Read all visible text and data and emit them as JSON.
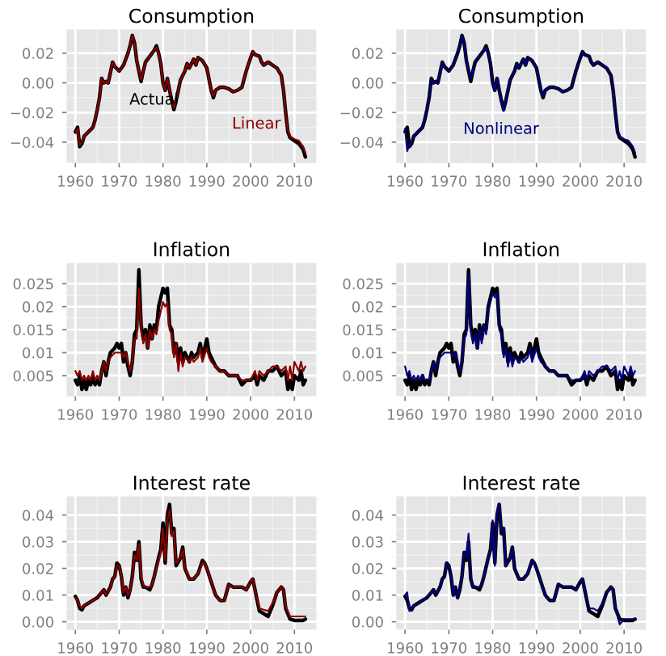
{
  "chart_data": [
    {
      "type": "line",
      "title": "Consumption",
      "xlim": [
        1958,
        2015
      ],
      "xticks": [
        1960,
        1970,
        1980,
        1990,
        2000,
        2010
      ],
      "ylim": [
        -0.054,
        0.036
      ],
      "yticks": [
        {
          "value": -0.04,
          "label": "−0.04"
        },
        {
          "value": -0.02,
          "label": "−0.02"
        },
        {
          "value": 0,
          "label": "0.00"
        },
        {
          "value": 0.02,
          "label": "0.02"
        }
      ],
      "grid": true,
      "x": [
        1960,
        1960.5,
        1961,
        1961.5,
        1962,
        1963,
        1964,
        1964.5,
        1965,
        1965.5,
        1966,
        1966.5,
        1967,
        1967.5,
        1968,
        1968.5,
        1969,
        1970,
        1970.5,
        1971,
        1972,
        1972.5,
        1973,
        1973.5,
        1974,
        1975,
        1975.5,
        1976,
        1977,
        1978,
        1978.5,
        1979,
        1979.5,
        1980,
        1980.5,
        1981,
        1981.5,
        1982,
        1982.5,
        1983,
        1983.5,
        1984,
        1985,
        1985.5,
        1986,
        1987,
        1987.5,
        1988,
        1989,
        1990,
        1991,
        1991.5,
        1992,
        1993,
        1994,
        1995,
        1996,
        1997,
        1998,
        1999,
        2000,
        2000.5,
        2001,
        2002,
        2002.5,
        2003,
        2004,
        2005,
        2006,
        2007,
        2007.5,
        2008,
        2008.5,
        2009,
        2010,
        2011,
        2012,
        2012.5
      ],
      "series": [
        {
          "name": "Actual",
          "color": "#000000",
          "values": [
            -0.033,
            -0.03,
            -0.043,
            -0.041,
            -0.036,
            -0.033,
            -0.03,
            -0.025,
            -0.018,
            -0.01,
            0.003,
            0.0,
            0.001,
            0.0,
            0.007,
            0.014,
            0.011,
            0.008,
            0.01,
            0.012,
            0.02,
            0.025,
            0.032,
            0.027,
            0.015,
            0.001,
            0.008,
            0.014,
            0.018,
            0.022,
            0.025,
            0.02,
            0.013,
            0.0,
            -0.005,
            0.003,
            -0.005,
            -0.012,
            -0.018,
            -0.012,
            -0.005,
            0.002,
            0.008,
            0.013,
            0.01,
            0.016,
            0.012,
            0.017,
            0.015,
            0.01,
            -0.005,
            -0.01,
            -0.005,
            -0.003,
            -0.003,
            -0.004,
            -0.006,
            -0.005,
            -0.003,
            0.008,
            0.017,
            0.021,
            0.019,
            0.018,
            0.014,
            0.012,
            0.014,
            0.012,
            0.01,
            0.005,
            -0.005,
            -0.02,
            -0.033,
            -0.037,
            -0.039,
            -0.041,
            -0.045,
            -0.05
          ]
        },
        {
          "name": "Linear",
          "color": "#8b0000",
          "values": [
            -0.034,
            -0.031,
            -0.042,
            -0.04,
            -0.036,
            -0.033,
            -0.03,
            -0.025,
            -0.018,
            -0.01,
            0.003,
            0.0,
            0.001,
            0.0,
            0.007,
            0.014,
            0.011,
            0.008,
            0.01,
            0.012,
            0.02,
            0.025,
            0.032,
            0.027,
            0.015,
            0.002,
            0.008,
            0.014,
            0.018,
            0.022,
            0.024,
            0.02,
            0.013,
            0.0,
            -0.005,
            0.003,
            -0.005,
            -0.012,
            -0.017,
            -0.012,
            -0.005,
            0.002,
            0.008,
            0.013,
            0.01,
            0.016,
            0.012,
            0.017,
            0.015,
            0.01,
            -0.005,
            -0.009,
            -0.005,
            -0.003,
            -0.003,
            -0.004,
            -0.006,
            -0.005,
            -0.003,
            0.008,
            0.017,
            0.021,
            0.019,
            0.018,
            0.014,
            0.012,
            0.014,
            0.012,
            0.01,
            0.005,
            -0.005,
            -0.02,
            -0.032,
            -0.036,
            -0.038,
            -0.039,
            -0.043,
            -0.047
          ]
        }
      ]
    },
    {
      "type": "line",
      "title": "Consumption",
      "xlim": [
        1958,
        2015
      ],
      "xticks": [
        1960,
        1970,
        1980,
        1990,
        2000,
        2010
      ],
      "ylim": [
        -0.054,
        0.036
      ],
      "yticks": [
        {
          "value": -0.04,
          "label": "−0.04"
        },
        {
          "value": -0.02,
          "label": "−0.02"
        },
        {
          "value": 0,
          "label": "0.00"
        },
        {
          "value": 0.02,
          "label": "0.02"
        }
      ],
      "grid": true,
      "x": [
        1960,
        1960.5,
        1961,
        1961.5,
        1962,
        1963,
        1964,
        1964.5,
        1965,
        1965.5,
        1966,
        1966.5,
        1967,
        1967.5,
        1968,
        1968.5,
        1969,
        1970,
        1970.5,
        1971,
        1972,
        1972.5,
        1973,
        1973.5,
        1974,
        1975,
        1975.5,
        1976,
        1977,
        1978,
        1978.5,
        1979,
        1979.5,
        1980,
        1980.5,
        1981,
        1981.5,
        1982,
        1982.5,
        1983,
        1983.5,
        1984,
        1985,
        1985.5,
        1986,
        1987,
        1987.5,
        1988,
        1989,
        1990,
        1991,
        1991.5,
        1992,
        1993,
        1994,
        1995,
        1996,
        1997,
        1998,
        1999,
        2000,
        2000.5,
        2001,
        2002,
        2002.5,
        2003,
        2004,
        2005,
        2006,
        2007,
        2007.5,
        2008,
        2008.5,
        2009,
        2010,
        2011,
        2012,
        2012.5
      ],
      "series": [
        {
          "color": "#000000",
          "values": [
            -0.033,
            -0.03,
            -0.043,
            -0.041,
            -0.036,
            -0.033,
            -0.03,
            -0.025,
            -0.018,
            -0.01,
            0.003,
            0.0,
            0.001,
            0.0,
            0.007,
            0.014,
            0.011,
            0.008,
            0.01,
            0.012,
            0.02,
            0.025,
            0.032,
            0.027,
            0.015,
            0.001,
            0.008,
            0.014,
            0.018,
            0.022,
            0.025,
            0.02,
            0.013,
            0.0,
            -0.005,
            0.003,
            -0.005,
            -0.012,
            -0.018,
            -0.012,
            -0.005,
            0.002,
            0.008,
            0.013,
            0.01,
            0.016,
            0.012,
            0.017,
            0.015,
            0.01,
            -0.005,
            -0.01,
            -0.005,
            -0.003,
            -0.003,
            -0.004,
            -0.006,
            -0.005,
            -0.003,
            0.008,
            0.017,
            0.021,
            0.019,
            0.018,
            0.014,
            0.012,
            0.014,
            0.012,
            0.01,
            0.005,
            -0.005,
            -0.02,
            -0.033,
            -0.037,
            -0.039,
            -0.041,
            -0.045,
            -0.05
          ]
        },
        {
          "name": "Nonlinear",
          "color": "#000080",
          "values": [
            -0.031,
            -0.046,
            -0.042,
            -0.04,
            -0.036,
            -0.033,
            -0.03,
            -0.025,
            -0.018,
            -0.01,
            0.003,
            0.0,
            0.001,
            0.0,
            0.007,
            0.014,
            0.011,
            0.008,
            0.01,
            0.012,
            0.02,
            0.025,
            0.032,
            0.027,
            0.015,
            0.003,
            0.008,
            0.014,
            0.018,
            0.022,
            0.024,
            0.02,
            0.013,
            0.0,
            -0.005,
            0.003,
            -0.005,
            -0.012,
            -0.019,
            -0.012,
            -0.005,
            0.002,
            0.008,
            0.013,
            0.01,
            0.016,
            0.012,
            0.017,
            0.015,
            0.01,
            -0.005,
            -0.009,
            -0.005,
            -0.003,
            -0.003,
            -0.004,
            -0.006,
            -0.005,
            -0.003,
            0.008,
            0.017,
            0.021,
            0.019,
            0.018,
            0.014,
            0.012,
            0.014,
            0.012,
            0.01,
            0.005,
            -0.005,
            -0.02,
            -0.032,
            -0.036,
            -0.038,
            -0.039,
            -0.043,
            -0.047
          ]
        }
      ]
    },
    {
      "type": "line",
      "title": "Inflation",
      "xlim": [
        1958,
        2015
      ],
      "xticks": [
        1960,
        1970,
        1980,
        1990,
        2000,
        2010
      ],
      "ylim": [
        0.0005,
        0.0295
      ],
      "yticks": [
        0.005,
        0.01,
        0.015,
        0.02,
        0.025
      ],
      "grid": true,
      "x": [
        1960,
        1960.5,
        1961,
        1961.5,
        1962,
        1962.5,
        1963,
        1963.5,
        1964,
        1964.5,
        1965,
        1965.5,
        1966,
        1966.5,
        1967,
        1967.5,
        1968,
        1969,
        1969.5,
        1970,
        1970.5,
        1971,
        1971.5,
        1972,
        1972.5,
        1973,
        1973.5,
        1974,
        1974.5,
        1975,
        1975.5,
        1976,
        1976.5,
        1977,
        1977.5,
        1978,
        1978.5,
        1979,
        1979.5,
        1980,
        1980.5,
        1981,
        1981.5,
        1982,
        1982.5,
        1983,
        1983.5,
        1984,
        1984.5,
        1985,
        1986,
        1986.5,
        1987,
        1988,
        1988.5,
        1989,
        1990,
        1990.5,
        1991,
        1992,
        1993,
        1994,
        1995,
        1996,
        1997,
        1998,
        1999,
        2000,
        2001,
        2001.5,
        2002,
        2003,
        2004,
        2005,
        2006,
        2007,
        2008,
        2008.5,
        2009,
        2009.5,
        2010,
        2011,
        2011.5,
        2012,
        2012.5
      ],
      "series": [
        {
          "color": "#000000",
          "values": [
            0.004,
            0.003,
            0.005,
            0.002,
            0.004,
            0.002,
            0.004,
            0.003,
            0.005,
            0.003,
            0.004,
            0.003,
            0.006,
            0.008,
            0.005,
            0.008,
            0.01,
            0.011,
            0.012,
            0.011,
            0.012,
            0.008,
            0.01,
            0.007,
            0.005,
            0.008,
            0.014,
            0.015,
            0.028,
            0.016,
            0.013,
            0.015,
            0.011,
            0.016,
            0.013,
            0.016,
            0.015,
            0.02,
            0.022,
            0.024,
            0.023,
            0.024,
            0.016,
            0.015,
            0.01,
            0.012,
            0.008,
            0.011,
            0.008,
            0.01,
            0.008,
            0.01,
            0.009,
            0.01,
            0.012,
            0.009,
            0.013,
            0.01,
            0.009,
            0.007,
            0.006,
            0.006,
            0.005,
            0.005,
            0.005,
            0.003,
            0.004,
            0.004,
            0.005,
            0.003,
            0.005,
            0.004,
            0.006,
            0.006,
            0.007,
            0.005,
            0.006,
            0.002,
            0.004,
            0.002,
            0.005,
            0.004,
            0.006,
            0.003,
            0.004
          ]
        },
        {
          "color": "#8b0000",
          "values": [
            0.006,
            0.005,
            0.006,
            0.004,
            0.005,
            0.004,
            0.005,
            0.004,
            0.006,
            0.004,
            0.005,
            0.004,
            0.006,
            0.008,
            0.006,
            0.008,
            0.009,
            0.01,
            0.01,
            0.01,
            0.01,
            0.009,
            0.01,
            0.008,
            0.006,
            0.008,
            0.013,
            0.013,
            0.024,
            0.015,
            0.012,
            0.014,
            0.011,
            0.015,
            0.013,
            0.015,
            0.014,
            0.017,
            0.019,
            0.021,
            0.02,
            0.021,
            0.015,
            0.014,
            0.009,
            0.012,
            0.006,
            0.01,
            0.007,
            0.009,
            0.008,
            0.009,
            0.008,
            0.009,
            0.011,
            0.008,
            0.011,
            0.009,
            0.008,
            0.007,
            0.006,
            0.006,
            0.005,
            0.005,
            0.005,
            0.004,
            0.004,
            0.004,
            0.006,
            0.004,
            0.006,
            0.005,
            0.006,
            0.007,
            0.007,
            0.006,
            0.007,
            0.004,
            0.007,
            0.004,
            0.008,
            0.006,
            0.008,
            0.006,
            0.007
          ]
        }
      ]
    },
    {
      "type": "line",
      "title": "Inflation",
      "xlim": [
        1958,
        2015
      ],
      "xticks": [
        1960,
        1970,
        1980,
        1990,
        2000,
        2010
      ],
      "ylim": [
        0.0005,
        0.0295
      ],
      "yticks": [
        0.005,
        0.01,
        0.015,
        0.02,
        0.025
      ],
      "grid": true,
      "x": [
        1960,
        1960.5,
        1961,
        1961.5,
        1962,
        1962.5,
        1963,
        1963.5,
        1964,
        1964.5,
        1965,
        1965.5,
        1966,
        1966.5,
        1967,
        1967.5,
        1968,
        1969,
        1969.5,
        1970,
        1970.5,
        1971,
        1971.5,
        1972,
        1972.5,
        1973,
        1973.5,
        1974,
        1974.5,
        1975,
        1975.5,
        1976,
        1976.5,
        1977,
        1977.5,
        1978,
        1978.5,
        1979,
        1979.5,
        1980,
        1980.5,
        1981,
        1981.5,
        1982,
        1982.5,
        1983,
        1983.5,
        1984,
        1984.5,
        1985,
        1986,
        1986.5,
        1987,
        1988,
        1988.5,
        1989,
        1990,
        1990.5,
        1991,
        1992,
        1993,
        1994,
        1995,
        1996,
        1997,
        1998,
        1999,
        2000,
        2001,
        2001.5,
        2002,
        2003,
        2004,
        2005,
        2006,
        2007,
        2008,
        2008.5,
        2009,
        2009.5,
        2010,
        2011,
        2011.5,
        2012,
        2012.5
      ],
      "series": [
        {
          "color": "#000000",
          "values": [
            0.004,
            0.003,
            0.005,
            0.002,
            0.004,
            0.002,
            0.004,
            0.003,
            0.005,
            0.003,
            0.004,
            0.003,
            0.006,
            0.008,
            0.005,
            0.008,
            0.01,
            0.011,
            0.012,
            0.011,
            0.012,
            0.008,
            0.01,
            0.007,
            0.005,
            0.008,
            0.014,
            0.015,
            0.028,
            0.016,
            0.013,
            0.015,
            0.011,
            0.016,
            0.013,
            0.016,
            0.015,
            0.02,
            0.022,
            0.024,
            0.023,
            0.024,
            0.016,
            0.015,
            0.01,
            0.012,
            0.008,
            0.011,
            0.008,
            0.01,
            0.008,
            0.01,
            0.009,
            0.01,
            0.012,
            0.009,
            0.013,
            0.01,
            0.009,
            0.007,
            0.006,
            0.006,
            0.005,
            0.005,
            0.005,
            0.003,
            0.004,
            0.004,
            0.005,
            0.003,
            0.005,
            0.004,
            0.006,
            0.006,
            0.007,
            0.005,
            0.006,
            0.002,
            0.004,
            0.002,
            0.005,
            0.004,
            0.006,
            0.003,
            0.004
          ]
        },
        {
          "color": "#000080",
          "values": [
            0.007,
            0.005,
            0.006,
            0.004,
            0.005,
            0.004,
            0.005,
            0.004,
            0.005,
            0.004,
            0.004,
            0.004,
            0.006,
            0.008,
            0.006,
            0.008,
            0.009,
            0.01,
            0.01,
            0.01,
            0.01,
            0.009,
            0.01,
            0.008,
            0.006,
            0.008,
            0.013,
            0.014,
            0.027,
            0.015,
            0.012,
            0.014,
            0.011,
            0.015,
            0.012,
            0.016,
            0.014,
            0.019,
            0.021,
            0.023,
            0.022,
            0.023,
            0.015,
            0.014,
            0.009,
            0.011,
            0.007,
            0.01,
            0.007,
            0.009,
            0.008,
            0.009,
            0.008,
            0.009,
            0.011,
            0.008,
            0.011,
            0.009,
            0.008,
            0.007,
            0.006,
            0.006,
            0.005,
            0.005,
            0.005,
            0.004,
            0.004,
            0.004,
            0.006,
            0.004,
            0.006,
            0.005,
            0.006,
            0.007,
            0.007,
            0.006,
            0.007,
            0.004,
            0.006,
            0.004,
            0.007,
            0.005,
            0.007,
            0.005,
            0.006
          ]
        }
      ]
    },
    {
      "type": "line",
      "title": "Interest rate",
      "xlim": [
        1958,
        2015
      ],
      "xticks": [
        1960,
        1970,
        1980,
        1990,
        2000,
        2010
      ],
      "ylim": [
        -0.003,
        0.047
      ],
      "yticks": [
        {
          "value": 0,
          "label": "0.00"
        },
        {
          "value": 0.01,
          "label": "0.01"
        },
        {
          "value": 0.02,
          "label": "0.02"
        },
        {
          "value": 0.03,
          "label": "0.03"
        },
        {
          "value": 0.04,
          "label": "0.04"
        }
      ],
      "grid": true,
      "x": [
        1960,
        1960.5,
        1961,
        1961.5,
        1962,
        1963,
        1964,
        1965,
        1966,
        1966.5,
        1967,
        1968,
        1968.5,
        1969,
        1969.5,
        1970,
        1970.5,
        1971,
        1971.5,
        1972,
        1972.5,
        1973,
        1973.5,
        1974,
        1974.5,
        1975,
        1975.5,
        1976,
        1977,
        1977.5,
        1978,
        1979,
        1979.5,
        1980,
        1980.5,
        1981,
        1981.5,
        1982,
        1982.5,
        1983,
        1984,
        1984.5,
        1985,
        1986,
        1987,
        1988,
        1989,
        1989.5,
        1990,
        1991,
        1992,
        1993,
        1994,
        1995,
        1996,
        1997,
        1998,
        1999,
        2000,
        2000.5,
        2001,
        2002,
        2003,
        2004,
        2005,
        2006,
        2007,
        2007.5,
        2008,
        2009,
        2010,
        2011,
        2012,
        2012.5
      ],
      "series": [
        {
          "color": "#000000",
          "values": [
            0.0095,
            0.008,
            0.005,
            0.0045,
            0.006,
            0.007,
            0.008,
            0.009,
            0.011,
            0.012,
            0.01,
            0.013,
            0.016,
            0.017,
            0.022,
            0.021,
            0.017,
            0.01,
            0.013,
            0.009,
            0.012,
            0.017,
            0.026,
            0.023,
            0.03,
            0.016,
            0.013,
            0.013,
            0.012,
            0.014,
            0.017,
            0.024,
            0.027,
            0.037,
            0.022,
            0.04,
            0.044,
            0.033,
            0.035,
            0.021,
            0.024,
            0.028,
            0.02,
            0.016,
            0.016,
            0.018,
            0.023,
            0.022,
            0.02,
            0.015,
            0.01,
            0.008,
            0.008,
            0.014,
            0.013,
            0.013,
            0.013,
            0.012,
            0.015,
            0.016,
            0.012,
            0.004,
            0.003,
            0.002,
            0.006,
            0.011,
            0.013,
            0.012,
            0.005,
            0.001,
            0.0005,
            0.0005,
            0.0005,
            0.001
          ]
        },
        {
          "color": "#8b0000",
          "values": [
            0.009,
            0.008,
            0.006,
            0.005,
            0.006,
            0.007,
            0.008,
            0.009,
            0.011,
            0.012,
            0.01,
            0.013,
            0.016,
            0.017,
            0.021,
            0.021,
            0.017,
            0.011,
            0.013,
            0.01,
            0.012,
            0.017,
            0.025,
            0.023,
            0.029,
            0.017,
            0.014,
            0.013,
            0.013,
            0.014,
            0.017,
            0.023,
            0.026,
            0.035,
            0.023,
            0.038,
            0.042,
            0.032,
            0.034,
            0.022,
            0.024,
            0.027,
            0.02,
            0.016,
            0.016,
            0.018,
            0.022,
            0.022,
            0.02,
            0.015,
            0.01,
            0.008,
            0.008,
            0.014,
            0.013,
            0.013,
            0.013,
            0.012,
            0.015,
            0.016,
            0.012,
            0.005,
            0.0045,
            0.004,
            0.007,
            0.011,
            0.013,
            0.012,
            0.006,
            0.002,
            0.002,
            0.002,
            0.002,
            0.002
          ]
        }
      ]
    },
    {
      "type": "line",
      "title": "Interest rate",
      "xlim": [
        1958,
        2015
      ],
      "xticks": [
        1960,
        1970,
        1980,
        1990,
        2000,
        2010
      ],
      "ylim": [
        -0.003,
        0.047
      ],
      "yticks": [
        {
          "value": 0,
          "label": "0.00"
        },
        {
          "value": 0.01,
          "label": "0.01"
        },
        {
          "value": 0.02,
          "label": "0.02"
        },
        {
          "value": 0.03,
          "label": "0.03"
        },
        {
          "value": 0.04,
          "label": "0.04"
        }
      ],
      "grid": true,
      "x": [
        1960,
        1960.5,
        1961,
        1961.5,
        1962,
        1963,
        1964,
        1965,
        1966,
        1966.5,
        1967,
        1968,
        1968.5,
        1969,
        1969.5,
        1970,
        1970.5,
        1971,
        1971.5,
        1972,
        1972.5,
        1973,
        1973.5,
        1974,
        1974.5,
        1975,
        1975.5,
        1976,
        1977,
        1977.5,
        1978,
        1979,
        1979.5,
        1980,
        1980.5,
        1981,
        1981.5,
        1982,
        1982.5,
        1983,
        1984,
        1984.5,
        1985,
        1986,
        1987,
        1988,
        1989,
        1989.5,
        1990,
        1991,
        1992,
        1993,
        1994,
        1995,
        1996,
        1997,
        1998,
        1999,
        2000,
        2000.5,
        2001,
        2002,
        2003,
        2004,
        2005,
        2006,
        2007,
        2007.5,
        2008,
        2009,
        2010,
        2011,
        2012,
        2012.5
      ],
      "series": [
        {
          "color": "#000000",
          "values": [
            0.0095,
            0.008,
            0.005,
            0.0045,
            0.006,
            0.007,
            0.008,
            0.009,
            0.011,
            0.012,
            0.01,
            0.013,
            0.016,
            0.017,
            0.022,
            0.021,
            0.017,
            0.01,
            0.013,
            0.009,
            0.012,
            0.017,
            0.026,
            0.023,
            0.03,
            0.016,
            0.013,
            0.013,
            0.012,
            0.014,
            0.017,
            0.024,
            0.027,
            0.037,
            0.022,
            0.04,
            0.044,
            0.033,
            0.035,
            0.021,
            0.024,
            0.028,
            0.02,
            0.016,
            0.016,
            0.018,
            0.023,
            0.022,
            0.02,
            0.015,
            0.01,
            0.008,
            0.008,
            0.014,
            0.013,
            0.013,
            0.013,
            0.012,
            0.015,
            0.016,
            0.012,
            0.004,
            0.003,
            0.002,
            0.006,
            0.011,
            0.013,
            0.012,
            0.005,
            0.001,
            0.0005,
            0.0005,
            0.0005,
            0.001
          ]
        },
        {
          "color": "#000080",
          "values": [
            0.01,
            0.011,
            0.004,
            0.005,
            0.006,
            0.007,
            0.008,
            0.009,
            0.011,
            0.012,
            0.01,
            0.013,
            0.016,
            0.017,
            0.022,
            0.021,
            0.017,
            0.01,
            0.013,
            0.009,
            0.012,
            0.017,
            0.026,
            0.024,
            0.033,
            0.017,
            0.013,
            0.013,
            0.013,
            0.014,
            0.017,
            0.024,
            0.027,
            0.038,
            0.021,
            0.041,
            0.044,
            0.034,
            0.035,
            0.021,
            0.024,
            0.028,
            0.02,
            0.016,
            0.016,
            0.018,
            0.023,
            0.022,
            0.02,
            0.015,
            0.01,
            0.008,
            0.008,
            0.014,
            0.013,
            0.013,
            0.013,
            0.012,
            0.015,
            0.016,
            0.012,
            0.005,
            0.005,
            0.004,
            0.007,
            0.011,
            0.013,
            0.012,
            0.005,
            -0.001,
            0.001,
            0.001,
            0.001,
            0.001
          ]
        }
      ]
    }
  ]
}
